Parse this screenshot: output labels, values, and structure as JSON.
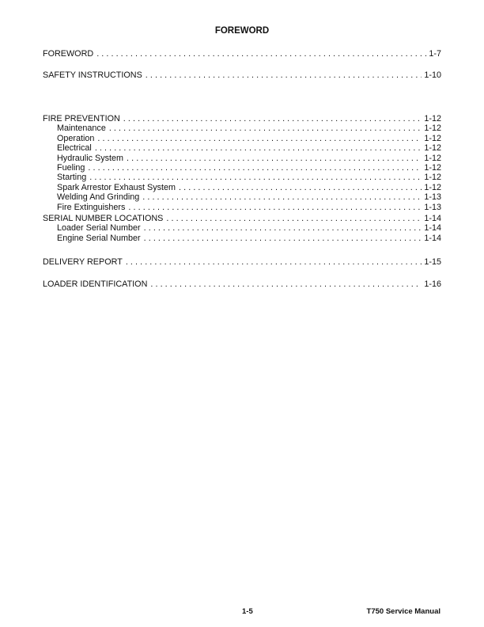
{
  "title": "FOREWORD",
  "toc": [
    {
      "entries": [
        {
          "label": "FOREWORD",
          "page": "1-7",
          "level": 0
        }
      ]
    },
    {
      "entries": [
        {
          "label": "SAFETY INSTRUCTIONS",
          "page": "1-10",
          "level": 0
        }
      ]
    },
    {
      "entries": [
        {
          "label": "FIRE PREVENTION",
          "page": "1-12",
          "level": 0
        },
        {
          "label": "Maintenance",
          "page": "1-12",
          "level": 1
        },
        {
          "label": "Operation",
          "page": "1-12",
          "level": 1
        },
        {
          "label": "Electrical",
          "page": "1-12",
          "level": 1
        },
        {
          "label": "Hydraulic System",
          "page": "1-12",
          "level": 1
        },
        {
          "label": "Fueling",
          "page": "1-12",
          "level": 1
        },
        {
          "label": "Starting",
          "page": "1-12",
          "level": 1
        },
        {
          "label": "Spark Arrestor Exhaust System",
          "page": "1-12",
          "level": 1
        },
        {
          "label": "Welding And Grinding",
          "page": "1-13",
          "level": 1
        },
        {
          "label": "Fire Extinguishers",
          "page": "1-13",
          "level": 1
        }
      ]
    },
    {
      "entries": [
        {
          "label": "SERIAL NUMBER LOCATIONS",
          "page": "1-14",
          "level": 0
        },
        {
          "label": "Loader Serial Number",
          "page": "1-14",
          "level": 1
        },
        {
          "label": "Engine Serial Number",
          "page": "1-14",
          "level": 1
        }
      ]
    },
    {
      "entries": [
        {
          "label": "DELIVERY REPORT",
          "page": "1-15",
          "level": 0
        }
      ]
    },
    {
      "entries": [
        {
          "label": "LOADER IDENTIFICATION",
          "page": "1-16",
          "level": 0
        }
      ]
    }
  ],
  "footer": {
    "page_number": "1-5",
    "manual_title": "T750 Service Manual"
  }
}
